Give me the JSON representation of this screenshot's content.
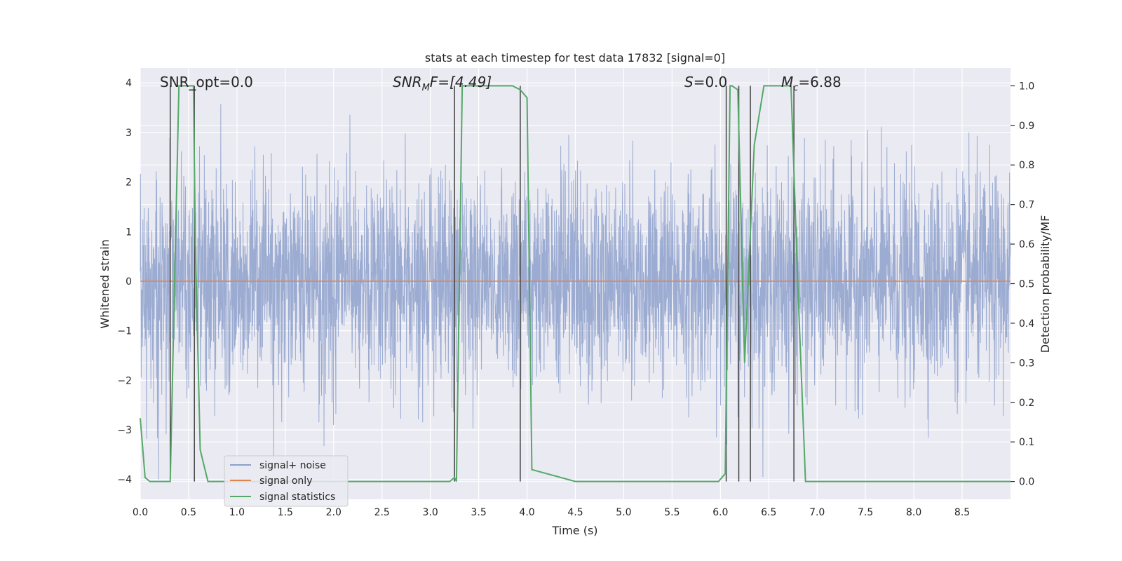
{
  "chart_data": {
    "type": "line",
    "title": "stats at each timestep for test data 17832 [signal=0]",
    "xlabel": "Time (s)",
    "ylabel_left": "Whitened strain",
    "ylabel_right": "Detection probability/MF",
    "xlim": [
      0.0,
      9.0
    ],
    "ylim_left": [
      -4.4,
      4.3
    ],
    "ylim_right": [
      -0.045,
      1.045
    ],
    "xticks": [
      0.0,
      0.5,
      1.0,
      1.5,
      2.0,
      2.5,
      3.0,
      3.5,
      4.0,
      4.5,
      5.0,
      5.5,
      6.0,
      6.5,
      7.0,
      7.5,
      8.0,
      8.5
    ],
    "xtick_labels": [
      "0.0",
      "0.5",
      "1.0",
      "1.5",
      "2.0",
      "2.5",
      "3.0",
      "3.5",
      "4.0",
      "4.5",
      "5.0",
      "5.5",
      "6.0",
      "6.5",
      "7.0",
      "7.5",
      "8.0",
      "8.5"
    ],
    "yticks_left": [
      4,
      3,
      2,
      1,
      0,
      -1,
      -2,
      -3,
      -4
    ],
    "yticks_left_labels": [
      "4",
      "3",
      "2",
      "1",
      "0",
      "−1",
      "−2",
      "−3",
      "−4"
    ],
    "yticks_right": [
      1.0,
      0.9,
      0.8,
      0.7,
      0.6,
      0.5,
      0.4,
      0.3,
      0.2,
      0.1,
      0.0
    ],
    "yticks_right_labels": [
      "1.0",
      "0.9",
      "0.8",
      "0.7",
      "0.6",
      "0.5",
      "0.4",
      "0.3",
      "0.2",
      "0.1",
      "0.0"
    ],
    "grid": true,
    "legend_position": "lower-left",
    "annotations": {
      "snr_opt": "SNR_opt=0.0",
      "snr_mf_main": "SNR",
      "snr_mf_sub": "M",
      "snr_mf_rest": "F=[4.49]",
      "s_main": "S",
      "s_rest": "=0.0",
      "mc_main": "M",
      "mc_sub": "c",
      "mc_rest": "=6.88"
    },
    "series": [
      {
        "name": "signal+ noise",
        "color": "#8da0cb",
        "axis": "left",
        "description_type": "noise",
        "envelope_approx": [
          -3.5,
          3.9
        ]
      },
      {
        "name": "signal only",
        "color": "#dd8452",
        "axis": "left",
        "x": [
          0.0,
          9.0
        ],
        "y": [
          0.0,
          0.0
        ]
      },
      {
        "name": "signal statistics",
        "color": "#55a868",
        "axis": "right",
        "x": [
          0.0,
          0.05,
          0.1,
          0.2,
          0.3,
          0.31,
          0.4,
          0.55,
          0.57,
          0.62,
          0.7,
          1.0,
          2.0,
          3.0,
          3.2,
          3.25,
          3.27,
          3.33,
          3.6,
          3.85,
          3.93,
          4.0,
          4.05,
          4.5,
          5.0,
          5.5,
          5.98,
          6.05,
          6.1,
          6.12,
          6.18,
          6.25,
          6.35,
          6.45,
          6.73,
          6.8,
          6.88,
          7.5,
          8.0,
          9.0
        ],
        "y": [
          0.16,
          0.01,
          0.0,
          0.0,
          0.0,
          0.0,
          1.0,
          1.0,
          0.6,
          0.08,
          0.0,
          0.0,
          0.0,
          0.0,
          0.0,
          0.01,
          0.0,
          1.0,
          1.0,
          1.0,
          0.99,
          0.97,
          0.03,
          0.0,
          0.0,
          0.0,
          0.0,
          0.02,
          1.0,
          1.0,
          0.99,
          0.3,
          0.85,
          1.0,
          1.0,
          0.5,
          0.0,
          0.0,
          0.0,
          0.0
        ]
      }
    ],
    "vertical_lines_x": [
      0.31,
      0.56,
      3.25,
      3.93,
      6.06,
      6.19,
      6.31,
      6.76
    ],
    "legend": [
      "signal+ noise",
      "signal only",
      "signal statistics"
    ]
  }
}
